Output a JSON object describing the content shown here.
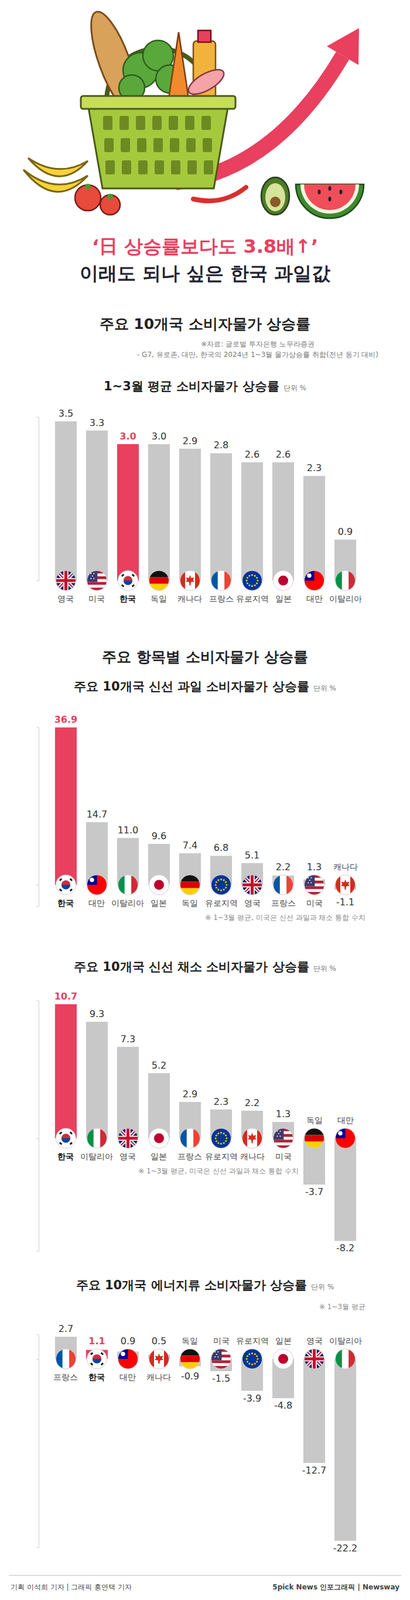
{
  "header": {
    "title": "‘日 상승률보다도 3.8배↑’",
    "subtitle": "이래도 되나 싶은 한국 과일값"
  },
  "sections": [
    {
      "title": "주요 10개국 소비자물가 상승률",
      "notes": [
        "※자료: 글로벌 투자은행 노무라증권",
        "- G7, 유로존, 대만, 한국의 2024년 1~3월 물가상승률 취합(전년 동기 대비)"
      ]
    },
    {
      "title": "주요 항목별 소비자물가 상승률"
    }
  ],
  "chart_data": [
    {
      "type": "bar",
      "title": "1~3월 평균 소비자물가 상승률",
      "unit": "단위 %",
      "categories": [
        "영국",
        "미국",
        "한국",
        "독일",
        "캐나다",
        "프랑스",
        "유로지역",
        "일본",
        "대만",
        "이탈리아"
      ],
      "values": [
        3.5,
        3.3,
        3.0,
        3.0,
        2.9,
        2.8,
        2.6,
        2.6,
        2.3,
        0.9
      ],
      "value_labels": [
        "3.5",
        "3.3",
        "3.0",
        "3.0",
        "2.9",
        "2.8",
        "2.6",
        "2.6",
        "2.3",
        "0.9"
      ],
      "color": "#c8c8c8",
      "colors": [
        "#c8c8c8",
        "#c8c8c8",
        "#e8405e",
        "#c8c8c8",
        "#c8c8c8",
        "#c8c8c8",
        "#c8c8c8",
        "#c8c8c8",
        "#c8c8c8",
        "#c8c8c8"
      ],
      "ylim": [
        0,
        3.6
      ],
      "yticks": [
        0
      ],
      "tick_labels": false,
      "data_labels": true
    },
    {
      "type": "bar",
      "title": "주요 10개국 신선 과일 소비자물가 상승률",
      "unit": "단위 %",
      "note": "※ 1~3월 평균, 미국은 신선 과일과 채소 통합 수치",
      "categories": [
        "한국",
        "대만",
        "이탈리아",
        "일본",
        "독일",
        "유로지역",
        "영국",
        "프랑스",
        "미국",
        "캐나다"
      ],
      "values": [
        36.9,
        14.7,
        11.0,
        9.6,
        7.4,
        6.8,
        5.1,
        2.2,
        1.3,
        -1.1
      ],
      "value_labels": [
        "36.9",
        "14.7",
        "11.0",
        "9.6",
        "7.4",
        "6.8",
        "5.1",
        "2.2",
        "1.3",
        "-1.1"
      ],
      "color": "#c8c8c8",
      "colors": [
        "#e8405e",
        "#c8c8c8",
        "#c8c8c8",
        "#c8c8c8",
        "#c8c8c8",
        "#c8c8c8",
        "#c8c8c8",
        "#c8c8c8",
        "#c8c8c8",
        "#c8c8c8"
      ],
      "ylim": [
        -5,
        37
      ],
      "yticks": [
        0
      ],
      "tick_labels": false,
      "data_labels": true
    },
    {
      "type": "bar",
      "title": "주요 10개국 신선 채소 소비자물가 상승률",
      "unit": "단위 %",
      "note": "※ 1~3월 평균, 미국은 신선 과일과 채소 통합 수치",
      "categories": [
        "한국",
        "이탈리아",
        "영국",
        "일본",
        "프랑스",
        "유로지역",
        "캐나다",
        "미국",
        "독일",
        "대만"
      ],
      "values": [
        10.7,
        9.3,
        7.3,
        5.2,
        2.9,
        2.3,
        2.2,
        1.3,
        -3.7,
        -8.2
      ],
      "value_labels": [
        "10.7",
        "9.3",
        "7.3",
        "5.2",
        "2.9",
        "2.3",
        "2.2",
        "1.3",
        "-3.7",
        "-8.2"
      ],
      "color": "#c8c8c8",
      "colors": [
        "#e8405e",
        "#c8c8c8",
        "#c8c8c8",
        "#c8c8c8",
        "#c8c8c8",
        "#c8c8c8",
        "#c8c8c8",
        "#c8c8c8",
        "#c8c8c8",
        "#c8c8c8"
      ],
      "ylim": [
        -9,
        11
      ],
      "yticks": [
        0
      ],
      "tick_labels": false,
      "data_labels": true
    },
    {
      "type": "bar",
      "title": "주요 10개국 에너지류 소비자물가 상승률",
      "unit": "단위 %",
      "note": "※ 1~3월 평균",
      "categories": [
        "프랑스",
        "한국",
        "대만",
        "캐나다",
        "독일",
        "미국",
        "유로지역",
        "일본",
        "영국",
        "이탈리아"
      ],
      "values": [
        2.7,
        1.1,
        0.9,
        0.5,
        -0.9,
        -1.5,
        -3.9,
        -4.8,
        -12.7,
        -22.2
      ],
      "value_labels": [
        "2.7",
        "1.1",
        "0.9",
        "0.5",
        "-0.9",
        "-1.5",
        "-3.9",
        "-4.8",
        "-12.7",
        "-22.2"
      ],
      "color": "#c8c8c8",
      "colors": [
        "#c8c8c8",
        "#e8405e",
        "#c8c8c8",
        "#c8c8c8",
        "#c8c8c8",
        "#c8c8c8",
        "#c8c8c8",
        "#c8c8c8",
        "#c8c8c8",
        "#c8c8c8"
      ],
      "ylim": [
        -23,
        3
      ],
      "yticks": [
        0
      ],
      "tick_labels": false,
      "data_labels": true
    }
  ],
  "footer": {
    "credits": "기획 이석희 기자 | 그래픽 홍연택 기자",
    "brand": "5pick News 인포그래픽 | Newsway"
  }
}
